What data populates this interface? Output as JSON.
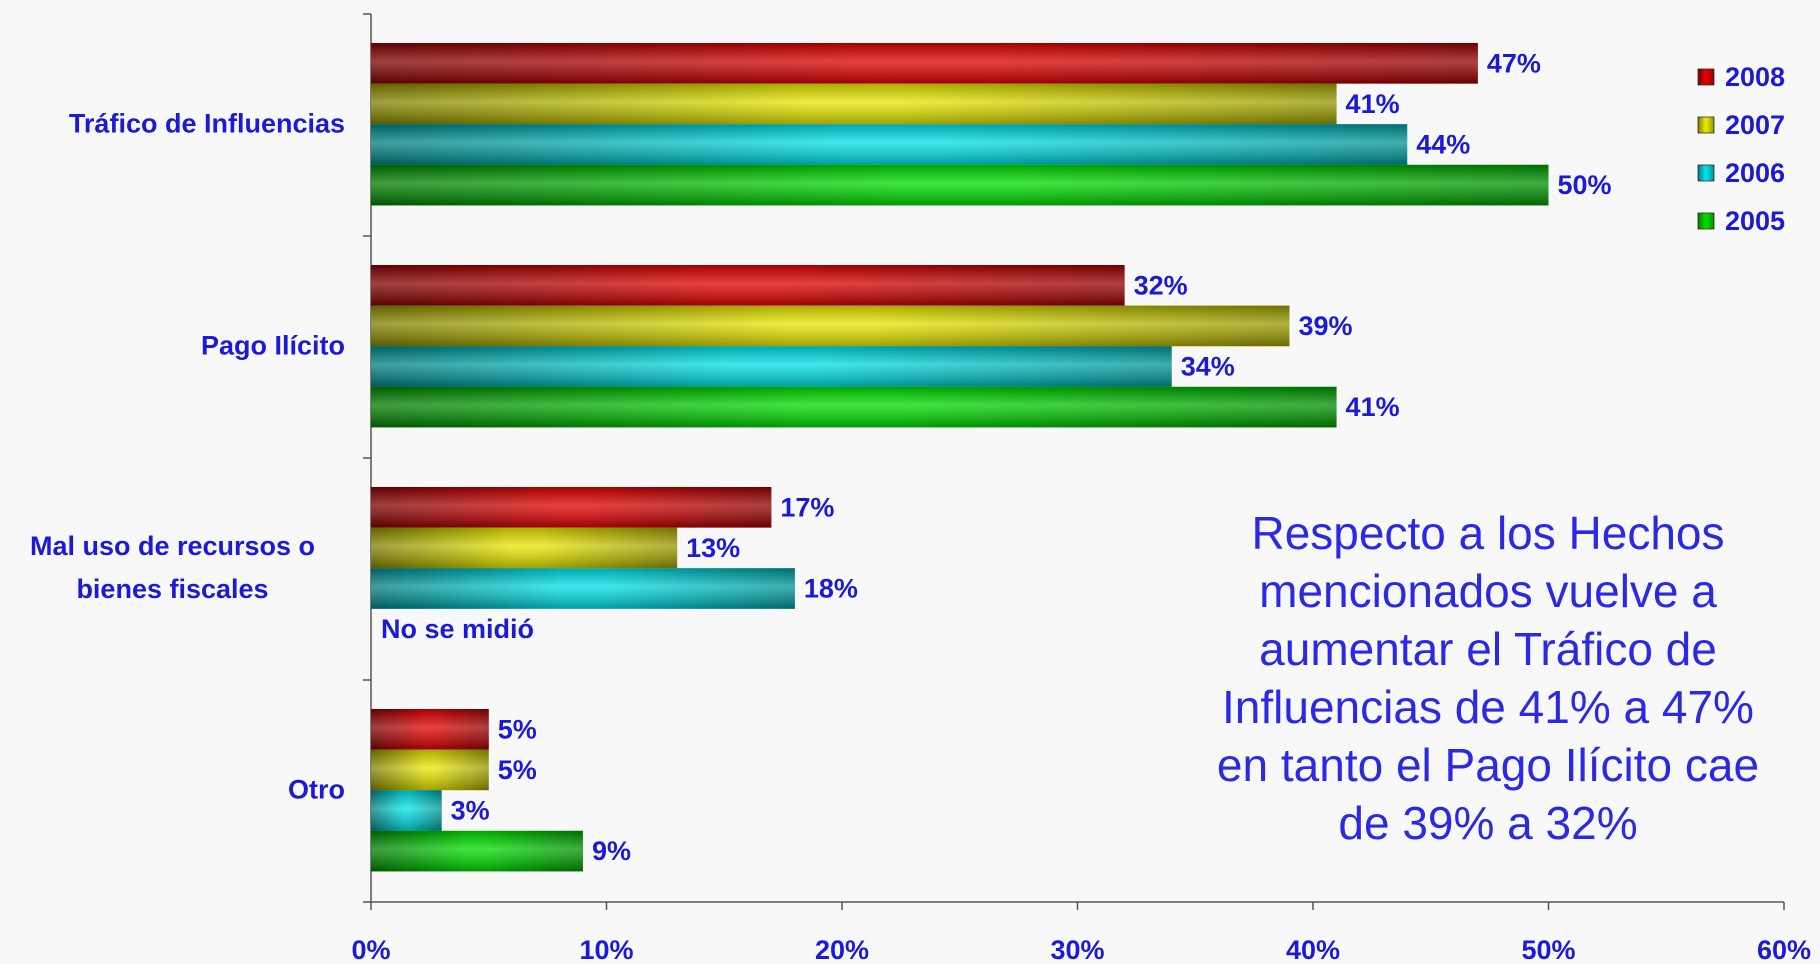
{
  "chart_data": {
    "type": "bar",
    "orientation": "horizontal",
    "categories": [
      "Tráfico de Influencias",
      "Pago Ilícito",
      "Mal uso de recursos o bienes fiscales",
      "Otro"
    ],
    "series": [
      {
        "name": "2008",
        "color": "#e00000",
        "values": [
          47,
          32,
          17,
          5
        ],
        "value_labels": [
          "47%",
          "32%",
          "17%",
          "5%"
        ]
      },
      {
        "name": "2007",
        "color": "#e6e600",
        "values": [
          41,
          39,
          13,
          5
        ],
        "value_labels": [
          "41%",
          "39%",
          "13%",
          "5%"
        ]
      },
      {
        "name": "2006",
        "color": "#00e0e6",
        "values": [
          44,
          34,
          18,
          3
        ],
        "value_labels": [
          "44%",
          "34%",
          "18%",
          "3%"
        ]
      },
      {
        "name": "2005",
        "color": "#00dc00",
        "values": [
          50,
          41,
          null,
          9
        ],
        "value_labels": [
          "50%",
          "41%",
          null,
          "9%"
        ]
      }
    ],
    "missing_note": "No se midió",
    "annotation_lines": [
      "Respecto a los Hechos",
      "mencionados vuelve a",
      "aumentar el Tráfico de",
      "Influencias de 41% a 47%",
      "en tanto el Pago Ilícito cae",
      "de 39% a 32%"
    ],
    "xlim": [
      0,
      60
    ],
    "xticks": [
      {
        "value": 0,
        "label": "0%"
      },
      {
        "value": 10,
        "label": "10%"
      },
      {
        "value": 20,
        "label": "20%"
      },
      {
        "value": 30,
        "label": "30%"
      },
      {
        "value": 40,
        "label": "40%"
      },
      {
        "value": 50,
        "label": "50%"
      },
      {
        "value": 60,
        "label": "60%"
      }
    ],
    "legend": "top-right",
    "grid": false
  }
}
